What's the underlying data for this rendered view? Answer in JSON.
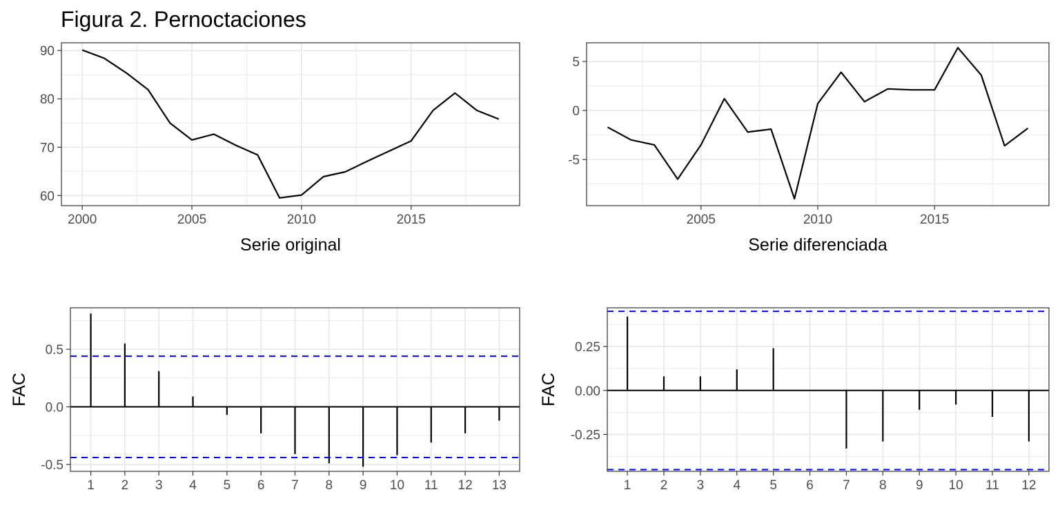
{
  "figure": {
    "title": "Figura 2. Pernoctaciones"
  },
  "colors": {
    "line": "#000000",
    "ci": "#0000ff",
    "grid": "#ebebeb",
    "panel_border": "#333333",
    "tick_text": "#4d4d4d"
  },
  "chart_data": [
    {
      "type": "line",
      "xlabel": "Serie original",
      "ylabel": "",
      "xlim": [
        1999.05,
        2019.95
      ],
      "ylim": [
        57.9,
        91.6
      ],
      "x_ticks": [
        2000,
        2005,
        2010,
        2015
      ],
      "x_tick_labels": [
        "2000",
        "2005",
        "2010",
        "2015"
      ],
      "y_ticks": [
        60,
        70,
        80,
        90
      ],
      "y_tick_labels": [
        "60",
        "70",
        "80",
        "90"
      ],
      "grid": true,
      "x": [
        2000,
        2001,
        2002,
        2003,
        2004,
        2005,
        2006,
        2007,
        2008,
        2009,
        2010,
        2011,
        2012,
        2013,
        2014,
        2015,
        2016,
        2017,
        2018,
        2019
      ],
      "y": [
        90.1,
        88.4,
        85.4,
        81.9,
        75.0,
        71.5,
        72.7,
        70.4,
        68.4,
        59.5,
        60.1,
        63.9,
        64.9,
        67.1,
        69.2,
        71.3,
        77.6,
        81.2,
        77.6,
        75.8
      ]
    },
    {
      "type": "line",
      "xlabel": "Serie diferenciada",
      "ylabel": "",
      "xlim": [
        2000.1,
        2019.9
      ],
      "ylim": [
        -9.7,
        6.9
      ],
      "x_ticks": [
        2005,
        2010,
        2015
      ],
      "x_tick_labels": [
        "2005",
        "2010",
        "2015"
      ],
      "y_ticks": [
        -5,
        0,
        5
      ],
      "y_tick_labels": [
        "-5",
        "0",
        "5"
      ],
      "grid": true,
      "x": [
        2001,
        2002,
        2003,
        2004,
        2005,
        2006,
        2007,
        2008,
        2009,
        2010,
        2011,
        2012,
        2013,
        2014,
        2015,
        2016,
        2017,
        2018,
        2019
      ],
      "y": [
        -1.7,
        -3.0,
        -3.5,
        -7.0,
        -3.5,
        1.2,
        -2.2,
        -1.9,
        -9.0,
        0.7,
        3.9,
        0.9,
        2.2,
        2.1,
        2.1,
        6.4,
        3.6,
        -3.6,
        -1.8
      ]
    },
    {
      "type": "bar",
      "xlabel": "",
      "ylabel": "FAC",
      "xlim": [
        0.4,
        13.6
      ],
      "ylim": [
        -0.56,
        0.86
      ],
      "x_ticks": [
        1,
        2,
        3,
        4,
        5,
        6,
        7,
        8,
        9,
        10,
        11,
        12,
        13
      ],
      "x_tick_labels": [
        "1",
        "2",
        "3",
        "4",
        "5",
        "6",
        "7",
        "8",
        "9",
        "10",
        "11",
        "12",
        "13"
      ],
      "y_ticks": [
        -0.5,
        0,
        0.5
      ],
      "y_tick_labels": [
        "-0.5",
        "0.0",
        "0.5"
      ],
      "grid": true,
      "lags": [
        1,
        2,
        3,
        4,
        5,
        6,
        7,
        8,
        9,
        10,
        11,
        12,
        13
      ],
      "values": [
        0.81,
        0.55,
        0.31,
        0.09,
        -0.07,
        -0.23,
        -0.41,
        -0.49,
        -0.52,
        -0.42,
        -0.31,
        -0.23,
        -0.12
      ],
      "ci": [
        0.44,
        -0.44
      ]
    },
    {
      "type": "bar",
      "xlabel": "",
      "ylabel": "FAC",
      "xlim": [
        0.45,
        12.55
      ],
      "ylim": [
        -0.46,
        0.47
      ],
      "x_ticks": [
        1,
        2,
        3,
        4,
        5,
        6,
        7,
        8,
        9,
        10,
        11,
        12
      ],
      "x_tick_labels": [
        "1",
        "2",
        "3",
        "4",
        "5",
        "6",
        "7",
        "8",
        "9",
        "10",
        "11",
        "12"
      ],
      "y_ticks": [
        -0.25,
        0,
        0.25
      ],
      "y_tick_labels": [
        "-0.25",
        "0.00",
        "0.25"
      ],
      "grid": true,
      "lags": [
        1,
        2,
        3,
        4,
        5,
        6,
        7,
        8,
        9,
        10,
        11,
        12
      ],
      "values": [
        0.42,
        0.08,
        0.08,
        0.12,
        0.24,
        0.0,
        -0.33,
        -0.29,
        -0.11,
        -0.08,
        -0.15,
        -0.29
      ],
      "ci": [
        0.45,
        -0.45
      ]
    }
  ]
}
